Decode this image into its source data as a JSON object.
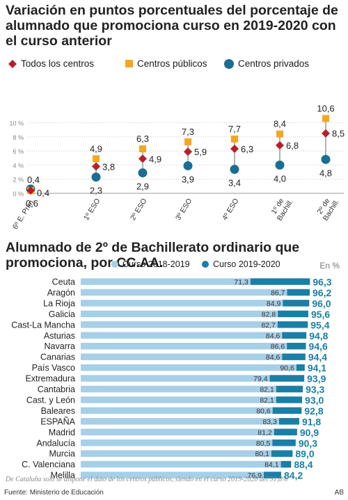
{
  "title_top": "Variación en puntos porcentuales del porcentaje de alumnado que promociona curso en 2019-2020 con el curso anterior",
  "title_bottom": "Alumnado de 2º de Bachillerato ordinario que promociona, por CC.AA.",
  "unit_label": "En %",
  "footnote": "De Cataluña solo se dispone el dato de los centros públicos, siendo en el curso 2019-2020 del 91,8%",
  "source": "Fuente: Ministerio de Educación",
  "credit": "AB",
  "colors": {
    "todos": "#b5202a",
    "publicos": "#f5a623",
    "privados": "#1a6e94",
    "bar2018": "#a6cfe8",
    "bar2019": "#1a7fa6",
    "label2019": "#1a7fa6"
  },
  "chart_data": [
    {
      "type": "scatter",
      "categories": [
        "6º E. Prim.",
        "1º ESO",
        "2º ESO",
        "3º ESO",
        "4º ESO",
        "1º de Bachill.",
        "2º de Bachill."
      ],
      "series": [
        {
          "name": "Todos los centros",
          "values": [
            0.4,
            3.8,
            4.9,
            5.9,
            6.3,
            6.8,
            8.5
          ]
        },
        {
          "name": "Centros públicos",
          "values": [
            0.4,
            4.9,
            6.3,
            7.3,
            7.7,
            8.4,
            10.6
          ]
        },
        {
          "name": "Centros privados",
          "values": [
            0.6,
            2.3,
            2.9,
            3.9,
            3.4,
            4.0,
            4.8
          ]
        }
      ],
      "value_labels": [
        [
          "0,4",
          "3,8",
          "4,9",
          "5,9",
          "6,3",
          "6,8",
          "8,5"
        ],
        [
          "0,4",
          "4,9",
          "6,3",
          "7,3",
          "7,7",
          "8,4",
          "10,6"
        ],
        [
          "0,6",
          "2,3",
          "2,9",
          "3,9",
          "3,4",
          "4,0",
          "4,8"
        ]
      ],
      "yticks": [
        "0 %",
        "2 %",
        "4 %",
        "6 %",
        "8 %",
        "10 %"
      ],
      "ylim": [
        0,
        11
      ],
      "legend_position": "top"
    },
    {
      "type": "bar",
      "categories": [
        "Ceuta",
        "Aragón",
        "La Rioja",
        "Galicia",
        "Cast-La Mancha",
        "Asturias",
        "Navarra",
        "Canarias",
        "País Vasco",
        "Extremadura",
        "Cantabria",
        "Cast. y León",
        "Baleares",
        "ESPAÑA",
        "Madrid",
        "Andalucía",
        "Murcia",
        "C. Valenciana",
        "Melilla"
      ],
      "series": [
        {
          "name": "Curso 2018-2019",
          "values": [
            71.3,
            86.7,
            84.9,
            82.8,
            82.7,
            84.6,
            86.6,
            84.6,
            90.6,
            79.4,
            82.1,
            82.1,
            80.6,
            83.3,
            81.2,
            80.5,
            80.1,
            84.1,
            76.9
          ]
        },
        {
          "name": "Curso 2019-2020",
          "values": [
            96.3,
            96.2,
            96.0,
            95.6,
            95.4,
            94.8,
            94.6,
            94.4,
            94.1,
            93.9,
            93.3,
            93.0,
            92.8,
            91.8,
            90.9,
            90.3,
            89.0,
            88.4,
            84.2
          ]
        }
      ],
      "value_labels": [
        [
          "71,3",
          "86,7",
          "84,9",
          "82,8",
          "82,7",
          "84,6",
          "86,6",
          "84,6",
          "90,6",
          "79,4",
          "82,1",
          "82,1",
          "80,6",
          "83,3",
          "81,2",
          "80,5",
          "80,1",
          "84,1",
          "76,9"
        ],
        [
          "96,3",
          "96,2",
          "96,0",
          "95,6",
          "95,4",
          "94,8",
          "94,6",
          "94,4",
          "94,1",
          "93,9",
          "93,3",
          "93,0",
          "92,8",
          "91,8",
          "90,9",
          "90,3",
          "89,0",
          "88,4",
          "84,2"
        ]
      ],
      "xlim": [
        0,
        100
      ],
      "orientation": "horizontal",
      "legend_position": "top"
    }
  ]
}
